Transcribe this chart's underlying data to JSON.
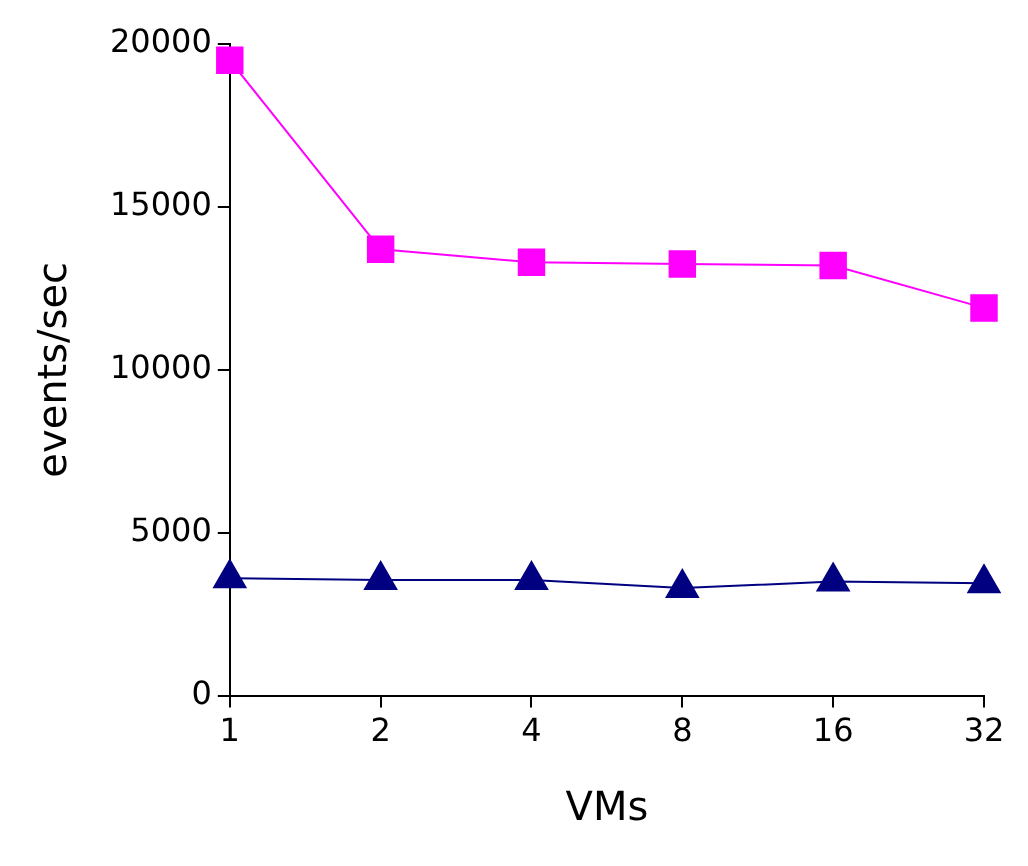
{
  "chart_data": {
    "type": "line",
    "xlabel": "VMs",
    "ylabel": "events/sec",
    "categories": [
      "1",
      "2",
      "4",
      "8",
      "16",
      "32"
    ],
    "ylim": [
      0,
      20000
    ],
    "yticks": [
      0,
      5000,
      10000,
      15000,
      20000
    ],
    "grid": false,
    "legend": false,
    "series": [
      {
        "color": "#ff00ff",
        "marker": "square",
        "values": [
          19500,
          13700,
          13300,
          13250,
          13200,
          11900
        ]
      },
      {
        "color": "#000080",
        "marker": "triangle",
        "values": [
          3600,
          3550,
          3550,
          3300,
          3500,
          3450
        ]
      }
    ]
  }
}
